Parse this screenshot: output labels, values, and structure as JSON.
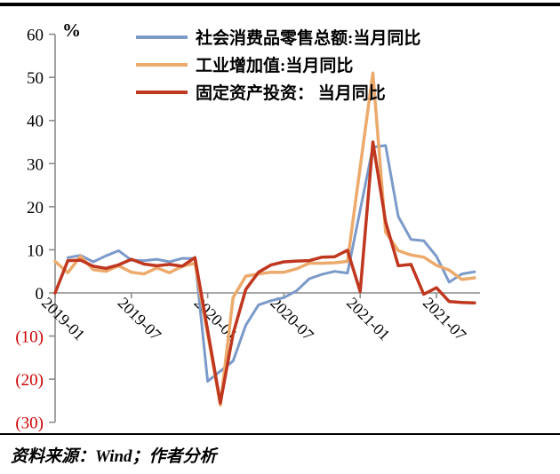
{
  "page": {
    "source_note": "资料来源：Wind；作者分析"
  },
  "chart_data": {
    "type": "line",
    "unit_label": "%",
    "x": [
      "2019-01",
      "2019-02",
      "2019-03",
      "2019-04",
      "2019-05",
      "2019-06",
      "2019-07",
      "2019-08",
      "2019-09",
      "2019-10",
      "2019-11",
      "2019-12",
      "2020-01",
      "2020-02",
      "2020-03",
      "2020-04",
      "2020-05",
      "2020-06",
      "2020-07",
      "2020-08",
      "2020-09",
      "2020-10",
      "2020-11",
      "2020-12",
      "2021-01",
      "2021-02",
      "2021-03",
      "2021-04",
      "2021-05",
      "2021-06",
      "2021-07",
      "2021-08",
      "2021-09",
      "2021-10"
    ],
    "series": [
      {
        "name": "社会消费品零售总额:当月同比",
        "color": "#7B9AC9",
        "width": 3,
        "values": [
          null,
          8.2,
          8.7,
          7.2,
          8.6,
          9.8,
          7.6,
          7.5,
          7.8,
          7.2,
          8.0,
          8.0,
          -20.5,
          null,
          -15.8,
          -7.5,
          -2.8,
          -1.8,
          -1.1,
          0.5,
          3.3,
          4.3,
          5.0,
          4.6,
          null,
          33.8,
          34.2,
          17.7,
          12.4,
          12.1,
          8.5,
          2.5,
          4.4,
          4.9
        ]
      },
      {
        "name": "工业增加值:当月同比",
        "color": "#ECAA6C",
        "width": 3.5,
        "values": [
          7.3,
          4.7,
          8.5,
          5.4,
          5.0,
          6.3,
          4.8,
          4.4,
          5.8,
          4.7,
          6.2,
          6.9,
          null,
          -26.0,
          -1.1,
          3.9,
          4.4,
          4.8,
          4.8,
          5.6,
          6.9,
          6.9,
          7.0,
          7.3,
          null,
          51.0,
          14.1,
          9.8,
          8.8,
          8.3,
          6.4,
          5.3,
          3.1,
          3.5
        ]
      },
      {
        "name": "固定资产投资： 当月同比",
        "color": "#C0371F",
        "width": 3.5,
        "values": [
          0.0,
          7.5,
          7.6,
          6.2,
          5.7,
          6.5,
          7.8,
          6.7,
          6.3,
          6.6,
          6.2,
          8.2,
          null,
          -25.5,
          -9.5,
          0.8,
          4.8,
          6.5,
          7.2,
          7.4,
          7.5,
          8.3,
          8.4,
          9.9,
          0.3,
          35.0,
          16.5,
          6.3,
          6.6,
          -0.3,
          1.2,
          -2.0,
          -2.2,
          -2.3
        ]
      }
    ],
    "ylim": [
      -30,
      60
    ],
    "ytick_step": 10,
    "xticks": [
      "2019-01",
      "2019-07",
      "2020-01",
      "2020-07",
      "2021-01",
      "2021-07"
    ],
    "legend_position": "top",
    "grid": false,
    "axis_color": "#8C8C8C",
    "negative_tick_color": "#CC0000",
    "tick_label_color": "#000000"
  }
}
